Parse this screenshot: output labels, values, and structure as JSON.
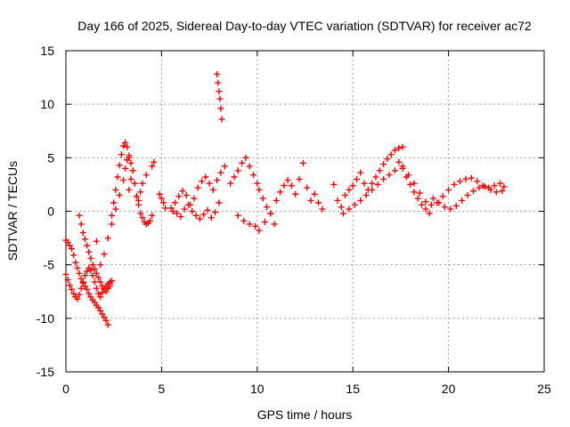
{
  "chart_data": {
    "type": "scatter",
    "title": "Day 166 of 2025, Sidereal Day-to-day VTEC variation (SDTVAR) for receiver ac72",
    "xlabel": "GPS time / hours",
    "ylabel": "SDTVAR / TECUs",
    "xlim": [
      0,
      25
    ],
    "ylim": [
      -15,
      15
    ],
    "xticks": [
      0,
      5,
      10,
      15,
      20,
      25
    ],
    "yticks": [
      -15,
      -10,
      -5,
      0,
      5,
      10,
      15
    ],
    "grid": true,
    "marker": "+",
    "color": "#ff0000",
    "series": [
      {
        "name": "SDTVAR",
        "x": [
          0.0,
          0.1,
          0.2,
          0.3,
          0.4,
          0.5,
          0.6,
          0.7,
          0.8,
          0.9,
          1.0,
          1.1,
          1.2,
          1.3,
          1.4,
          1.5,
          1.6,
          1.7,
          1.8,
          1.9,
          2.0,
          2.1,
          2.2,
          2.3,
          2.4,
          0.0,
          0.1,
          0.2,
          0.3,
          0.4,
          0.5,
          0.6,
          0.7,
          0.8,
          0.9,
          1.0,
          1.1,
          1.2,
          1.3,
          1.4,
          1.5,
          1.6,
          1.7,
          1.8,
          1.9,
          2.0,
          2.1,
          2.2,
          2.3,
          0.7,
          0.8,
          0.9,
          1.0,
          1.1,
          1.2,
          1.3,
          1.4,
          1.5,
          1.6,
          1.7,
          1.8,
          1.9,
          2.0,
          2.1,
          2.2,
          2.3,
          1.6,
          1.8,
          2.0,
          2.2,
          2.4,
          2.6,
          2.8,
          3.0,
          3.1,
          3.2,
          3.3,
          3.4,
          3.5,
          3.6,
          3.7,
          3.8,
          3.9,
          4.0,
          4.1,
          4.2,
          4.3,
          4.4,
          4.5,
          2.4,
          2.5,
          2.6,
          2.7,
          2.8,
          2.9,
          3.0,
          3.1,
          3.2,
          3.3,
          3.3,
          3.4,
          3.5,
          3.6,
          3.7,
          3.8,
          3.9,
          4.0,
          4.2,
          4.5,
          4.6,
          4.9,
          5.0,
          5.1,
          5.2,
          5.5,
          5.7,
          5.9,
          6.1,
          6.3,
          6.5,
          6.7,
          6.9,
          7.1,
          7.3,
          7.5,
          7.7,
          7.9,
          8.1,
          8.3,
          5.6,
          5.8,
          6.0,
          6.2,
          6.4,
          6.6,
          6.8,
          7.0,
          7.2,
          7.4,
          7.6,
          7.8,
          8.0,
          7.9,
          7.95,
          8.0,
          8.05,
          8.1,
          8.15,
          8.6,
          8.8,
          9.0,
          9.2,
          9.4,
          9.6,
          9.8,
          10.0,
          10.1,
          10.3,
          10.5,
          10.7,
          10.9,
          9.0,
          9.3,
          9.6,
          9.9,
          10.1,
          10.4,
          10.7,
          11.0,
          11.2,
          11.4,
          11.6,
          11.8,
          12.0,
          12.2,
          12.4,
          12.6,
          12.8,
          13.0,
          13.2,
          13.4,
          14.0,
          14.2,
          14.4,
          14.6,
          14.8,
          15.0,
          15.2,
          15.4,
          15.6,
          15.8,
          16.0,
          16.2,
          16.4,
          16.6,
          16.8,
          17.0,
          17.2,
          17.4,
          17.6,
          14.5,
          14.8,
          15.1,
          15.4,
          15.7,
          16.0,
          16.3,
          16.6,
          16.9,
          17.2,
          17.4,
          17.6,
          17.8,
          18.0,
          18.2,
          18.4,
          18.6,
          18.8,
          19.0,
          17.6,
          17.9,
          18.2,
          18.5,
          18.8,
          19.1,
          19.4,
          19.7,
          20.0,
          20.3,
          20.6,
          20.9,
          21.2,
          21.5,
          21.8,
          22.1,
          22.4,
          22.7,
          22.9,
          19.2,
          19.5,
          19.8,
          20.1,
          20.4,
          20.7,
          21.0,
          21.3,
          21.6,
          21.9,
          22.2,
          22.5,
          22.8
        ],
        "y": [
          -2.7,
          -2.9,
          -3.2,
          -3.5,
          -4.1,
          -4.8,
          -5.3,
          -5.8,
          -6.3,
          -6.7,
          -7.0,
          -7.3,
          -7.7,
          -8.0,
          -8.3,
          -8.5,
          -8.8,
          -9.0,
          -9.3,
          -9.6,
          -9.9,
          -10.2,
          -10.6,
          -7.0,
          -6.5,
          -5.9,
          -6.4,
          -6.9,
          -7.3,
          -7.7,
          -8.0,
          -8.2,
          -7.8,
          -7.2,
          -6.6,
          -6.0,
          -5.6,
          -5.3,
          -5.5,
          -6.0,
          -6.6,
          -7.2,
          -7.7,
          -8.0,
          -7.6,
          -7.2,
          -7.0,
          -6.8,
          -6.6,
          -0.4,
          -1.2,
          -2.0,
          -2.6,
          -3.2,
          -3.8,
          -4.4,
          -5.0,
          -5.4,
          -5.8,
          -6.2,
          -6.6,
          -7.0,
          -7.3,
          -7.5,
          -7.2,
          -6.8,
          -2.8,
          -5.0,
          -4.0,
          -2.5,
          -1.2,
          0.2,
          1.5,
          2.9,
          4.0,
          4.8,
          5.0,
          4.5,
          3.8,
          2.6,
          1.4,
          0.6,
          -0.2,
          -0.6,
          -1.0,
          -1.2,
          -1.1,
          -0.9,
          -0.4,
          -0.4,
          0.8,
          2.0,
          3.2,
          4.3,
          5.3,
          6.1,
          6.4,
          6.0,
          5.2,
          2.0,
          3.0,
          3.8,
          2.6,
          1.4,
          1.0,
          1.8,
          2.6,
          3.4,
          4.2,
          4.6,
          1.6,
          1.2,
          0.8,
          0.3,
          0.3,
          0.8,
          1.4,
          1.9,
          1.5,
          0.6,
          1.2,
          2.2,
          2.8,
          3.2,
          2.6,
          2.0,
          2.9,
          3.6,
          4.2,
          0.0,
          -0.2,
          -0.5,
          0.2,
          0.6,
          0.0,
          -0.4,
          -0.7,
          -0.3,
          0.1,
          -0.6,
          -0.1,
          0.8,
          12.8,
          12.0,
          11.2,
          10.5,
          9.6,
          8.6,
          2.6,
          3.2,
          3.8,
          4.5,
          5.0,
          4.2,
          3.4,
          2.6,
          2.0,
          1.2,
          0.4,
          -0.2,
          -1.2,
          -0.4,
          -0.9,
          -1.2,
          -1.4,
          -1.8,
          -1.0,
          -0.2,
          1.0,
          1.8,
          2.4,
          2.9,
          2.4,
          1.6,
          3.0,
          4.5,
          2.2,
          1.0,
          1.6,
          0.8,
          0.2,
          2.5,
          1.0,
          0.4,
          1.5,
          2.0,
          2.4,
          3.0,
          3.6,
          2.6,
          2.0,
          2.6,
          3.2,
          3.8,
          4.4,
          4.9,
          5.3,
          5.7,
          5.9,
          6.0,
          -0.2,
          0.2,
          0.6,
          1.0,
          1.5,
          2.0,
          2.5,
          3.0,
          3.4,
          3.8,
          4.6,
          4.0,
          3.2,
          2.5,
          1.8,
          1.2,
          0.6,
          0.2,
          -0.2,
          4.2,
          3.4,
          2.6,
          1.7,
          0.9,
          0.6,
          0.8,
          1.4,
          2.0,
          2.5,
          2.8,
          3.0,
          3.1,
          2.8,
          2.4,
          2.2,
          2.4,
          2.6,
          2.3,
          1.2,
          0.8,
          0.4,
          0.2,
          0.5,
          1.0,
          1.5,
          1.9,
          2.2,
          2.3,
          2.0,
          1.8,
          1.9
        ]
      }
    ]
  }
}
